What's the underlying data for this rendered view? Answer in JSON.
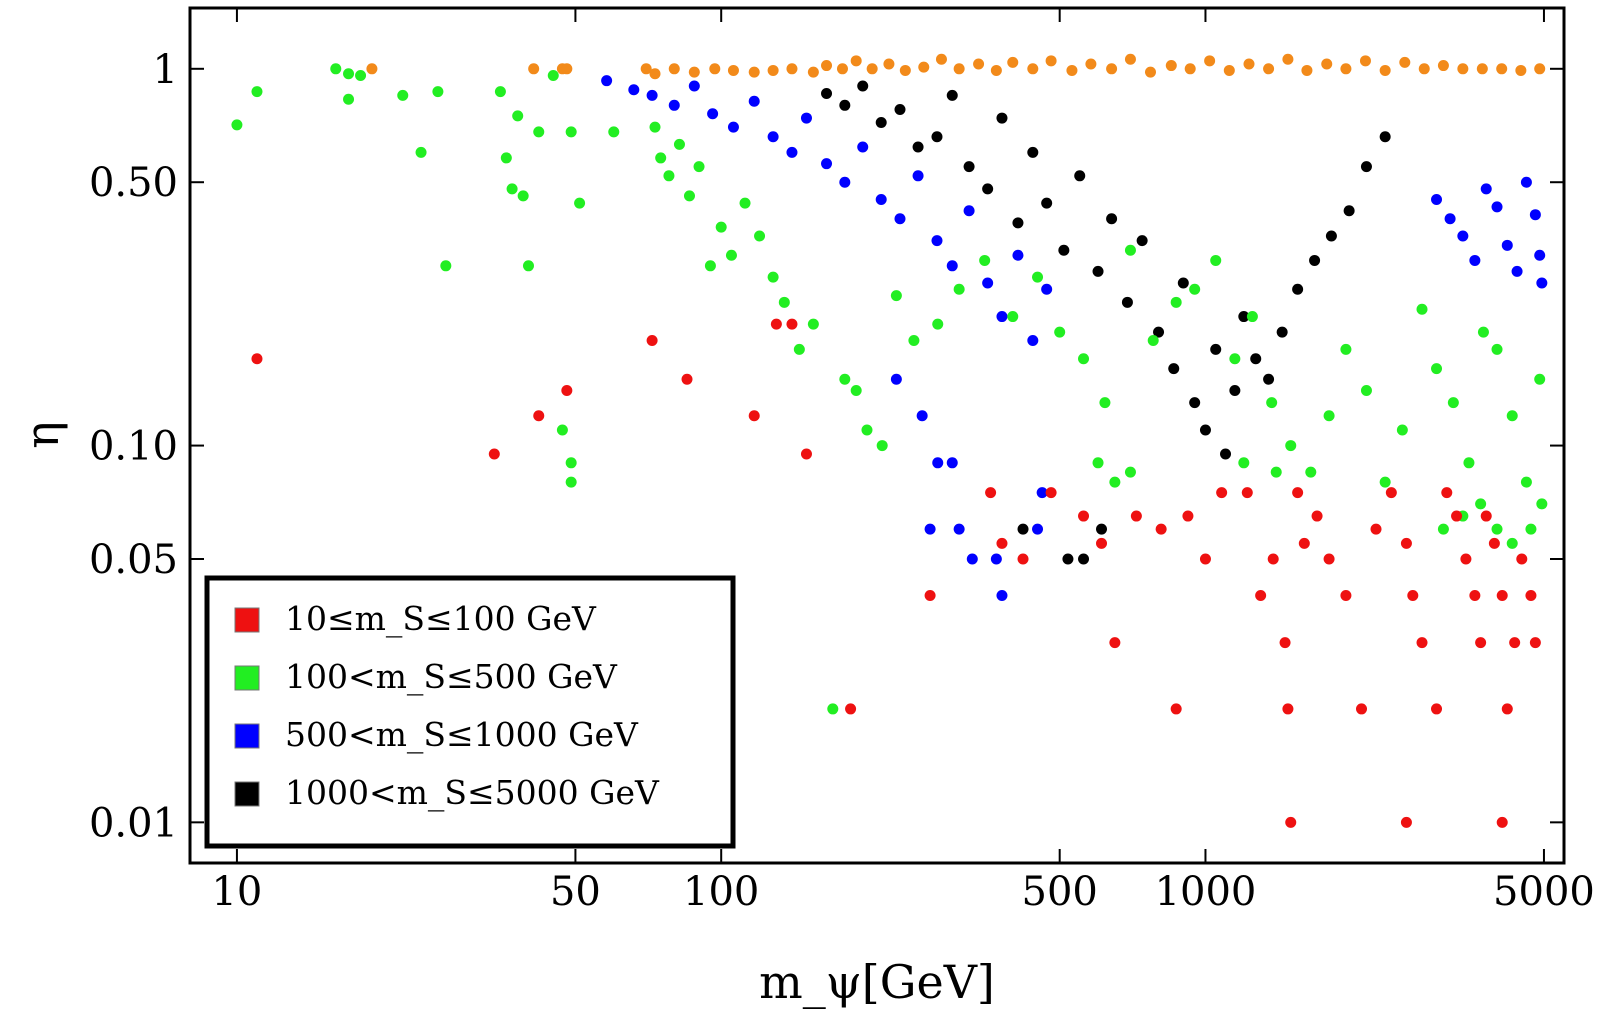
{
  "chart_data": {
    "type": "scatter",
    "x_scale": "log",
    "y_scale": "log",
    "xlim": [
      8,
      5500
    ],
    "ylim": [
      0.0078,
      1.45
    ],
    "xlabel": "m_ψ[GeV]",
    "ylabel": "η",
    "x_ticks": [
      {
        "value": 10,
        "label": "10"
      },
      {
        "value": 50,
        "label": "50"
      },
      {
        "value": 100,
        "label": "100"
      },
      {
        "value": 500,
        "label": "500"
      },
      {
        "value": 1000,
        "label": "1000"
      },
      {
        "value": 5000,
        "label": "5000"
      }
    ],
    "y_ticks": [
      {
        "value": 0.01,
        "label": "0.01"
      },
      {
        "value": 0.05,
        "label": "0.05"
      },
      {
        "value": 0.1,
        "label": "0.10"
      },
      {
        "value": 0.5,
        "label": "0.50"
      },
      {
        "value": 1,
        "label": "1"
      }
    ],
    "legend_position": "bottom-left",
    "legend": [
      {
        "series": "red",
        "text": "10≤m_S≤100  GeV"
      },
      {
        "series": "green",
        "text": "100<m_S≤500  GeV"
      },
      {
        "series": "blue",
        "text": "500<m_S≤1000  GeV"
      },
      {
        "series": "black",
        "text": "1000<m_S≤5000  GeV"
      }
    ],
    "series": [
      {
        "name": "orange",
        "color": "#f28a1a",
        "in_legend": false,
        "points": [
          [
            19,
            1.0
          ],
          [
            41,
            1.0
          ],
          [
            47,
            1.0
          ],
          [
            48,
            1.0
          ],
          [
            70,
            1.0
          ],
          [
            73,
            0.97
          ],
          [
            80,
            1.0
          ],
          [
            88,
            0.98
          ],
          [
            97,
            1.0
          ],
          [
            106,
            0.99
          ],
          [
            117,
            0.98
          ],
          [
            128,
            0.99
          ],
          [
            140,
            1.0
          ],
          [
            155,
            0.98
          ],
          [
            165,
            1.02
          ],
          [
            178,
            1.0
          ],
          [
            190,
            1.05
          ],
          [
            205,
            1.0
          ],
          [
            222,
            1.03
          ],
          [
            240,
            0.99
          ],
          [
            262,
            1.01
          ],
          [
            285,
            1.06
          ],
          [
            310,
            1.0
          ],
          [
            340,
            1.03
          ],
          [
            370,
            0.99
          ],
          [
            400,
            1.04
          ],
          [
            440,
            1.0
          ],
          [
            480,
            1.05
          ],
          [
            530,
            0.99
          ],
          [
            580,
            1.03
          ],
          [
            640,
            1.0
          ],
          [
            700,
            1.06
          ],
          [
            770,
            0.98
          ],
          [
            850,
            1.02
          ],
          [
            930,
            1.0
          ],
          [
            1020,
            1.05
          ],
          [
            1120,
            0.99
          ],
          [
            1230,
            1.03
          ],
          [
            1350,
            1.0
          ],
          [
            1480,
            1.06
          ],
          [
            1620,
            0.99
          ],
          [
            1780,
            1.03
          ],
          [
            1950,
            1.0
          ],
          [
            2140,
            1.05
          ],
          [
            2350,
            0.99
          ],
          [
            2580,
            1.04
          ],
          [
            2830,
            1.0
          ],
          [
            3100,
            1.02
          ],
          [
            3400,
            1.0
          ],
          [
            3730,
            1.0
          ],
          [
            4090,
            1.0
          ],
          [
            4480,
            0.99
          ],
          [
            4900,
            1.0
          ]
        ]
      },
      {
        "name": "black",
        "color": "#000000",
        "in_legend": true,
        "points": [
          [
            165,
            0.86
          ],
          [
            180,
            0.8
          ],
          [
            196,
            0.9
          ],
          [
            214,
            0.72
          ],
          [
            234,
            0.78
          ],
          [
            255,
            0.62
          ],
          [
            279,
            0.66
          ],
          [
            300,
            0.85
          ],
          [
            325,
            0.55
          ],
          [
            355,
            0.48
          ],
          [
            380,
            0.74
          ],
          [
            410,
            0.39
          ],
          [
            440,
            0.6
          ],
          [
            470,
            0.44
          ],
          [
            510,
            0.33
          ],
          [
            550,
            0.52
          ],
          [
            600,
            0.29
          ],
          [
            640,
            0.4
          ],
          [
            690,
            0.24
          ],
          [
            740,
            0.35
          ],
          [
            800,
            0.2
          ],
          [
            860,
            0.16
          ],
          [
            900,
            0.27
          ],
          [
            950,
            0.13
          ],
          [
            1000,
            0.11
          ],
          [
            1050,
            0.18
          ],
          [
            1100,
            0.095
          ],
          [
            1150,
            0.14
          ],
          [
            1200,
            0.22
          ],
          [
            1270,
            0.17
          ],
          [
            1350,
            0.15
          ],
          [
            1440,
            0.2
          ],
          [
            1550,
            0.26
          ],
          [
            1680,
            0.31
          ],
          [
            1820,
            0.36
          ],
          [
            1980,
            0.42
          ],
          [
            2150,
            0.55
          ],
          [
            2350,
            0.66
          ],
          [
            520,
            0.05
          ],
          [
            560,
            0.05
          ],
          [
            610,
            0.06
          ],
          [
            420,
            0.06
          ]
        ]
      },
      {
        "name": "blue",
        "color": "#0000ff",
        "in_legend": true,
        "points": [
          [
            58,
            0.93
          ],
          [
            66,
            0.88
          ],
          [
            72,
            0.85
          ],
          [
            80,
            0.8
          ],
          [
            88,
            0.9
          ],
          [
            96,
            0.76
          ],
          [
            106,
            0.7
          ],
          [
            117,
            0.82
          ],
          [
            128,
            0.66
          ],
          [
            140,
            0.6
          ],
          [
            150,
            0.74
          ],
          [
            165,
            0.56
          ],
          [
            180,
            0.5
          ],
          [
            196,
            0.62
          ],
          [
            214,
            0.45
          ],
          [
            234,
            0.4
          ],
          [
            255,
            0.52
          ],
          [
            279,
            0.35
          ],
          [
            300,
            0.3
          ],
          [
            325,
            0.42
          ],
          [
            355,
            0.27
          ],
          [
            380,
            0.22
          ],
          [
            410,
            0.32
          ],
          [
            440,
            0.19
          ],
          [
            470,
            0.26
          ],
          [
            230,
            0.15
          ],
          [
            260,
            0.12
          ],
          [
            280,
            0.09
          ],
          [
            300,
            0.09
          ],
          [
            270,
            0.06
          ],
          [
            310,
            0.06
          ],
          [
            330,
            0.05
          ],
          [
            370,
            0.05
          ],
          [
            380,
            0.04
          ],
          [
            460,
            0.075
          ],
          [
            450,
            0.06
          ],
          [
            3000,
            0.45
          ],
          [
            3200,
            0.4
          ],
          [
            3400,
            0.36
          ],
          [
            3600,
            0.31
          ],
          [
            3800,
            0.48
          ],
          [
            4000,
            0.43
          ],
          [
            4200,
            0.34
          ],
          [
            4400,
            0.29
          ],
          [
            4600,
            0.5
          ],
          [
            4800,
            0.41
          ],
          [
            4900,
            0.32
          ],
          [
            4950,
            0.27
          ]
        ]
      },
      {
        "name": "green",
        "color": "#22ee22",
        "in_legend": true,
        "points": [
          [
            10,
            0.71
          ],
          [
            11,
            0.87
          ],
          [
            16,
            1.0
          ],
          [
            17,
            0.97
          ],
          [
            18,
            0.96
          ],
          [
            17,
            0.83
          ],
          [
            22,
            0.85
          ],
          [
            24,
            0.6
          ],
          [
            26,
            0.87
          ],
          [
            27,
            0.3
          ],
          [
            35,
            0.87
          ],
          [
            36,
            0.58
          ],
          [
            37,
            0.48
          ],
          [
            38,
            0.75
          ],
          [
            39,
            0.46
          ],
          [
            40,
            0.3
          ],
          [
            42,
            0.68
          ],
          [
            45,
            0.96
          ],
          [
            49,
            0.68
          ],
          [
            51,
            0.44
          ],
          [
            60,
            0.68
          ],
          [
            47,
            0.11
          ],
          [
            49,
            0.09
          ],
          [
            49,
            0.08
          ],
          [
            73,
            0.7
          ],
          [
            75,
            0.58
          ],
          [
            78,
            0.52
          ],
          [
            82,
            0.63
          ],
          [
            86,
            0.46
          ],
          [
            90,
            0.55
          ],
          [
            95,
            0.3
          ],
          [
            100,
            0.38
          ],
          [
            105,
            0.32
          ],
          [
            112,
            0.44
          ],
          [
            120,
            0.36
          ],
          [
            128,
            0.28
          ],
          [
            135,
            0.24
          ],
          [
            145,
            0.18
          ],
          [
            155,
            0.21
          ],
          [
            170,
            0.02
          ],
          [
            180,
            0.15
          ],
          [
            190,
            0.14
          ],
          [
            200,
            0.11
          ],
          [
            215,
            0.1
          ],
          [
            230,
            0.25
          ],
          [
            250,
            0.19
          ],
          [
            280,
            0.21
          ],
          [
            310,
            0.26
          ],
          [
            350,
            0.31
          ],
          [
            400,
            0.22
          ],
          [
            450,
            0.28
          ],
          [
            500,
            0.2
          ],
          [
            560,
            0.17
          ],
          [
            620,
            0.13
          ],
          [
            700,
            0.33
          ],
          [
            780,
            0.19
          ],
          [
            870,
            0.24
          ],
          [
            950,
            0.26
          ],
          [
            1050,
            0.31
          ],
          [
            1150,
            0.17
          ],
          [
            1250,
            0.22
          ],
          [
            1370,
            0.13
          ],
          [
            1500,
            0.1
          ],
          [
            1650,
            0.085
          ],
          [
            1800,
            0.12
          ],
          [
            1950,
            0.18
          ],
          [
            2150,
            0.14
          ],
          [
            2350,
            0.08
          ],
          [
            2550,
            0.11
          ],
          [
            2800,
            0.23
          ],
          [
            3000,
            0.16
          ],
          [
            3250,
            0.13
          ],
          [
            3500,
            0.09
          ],
          [
            3750,
            0.2
          ],
          [
            4000,
            0.18
          ],
          [
            4300,
            0.12
          ],
          [
            4600,
            0.08
          ],
          [
            4900,
            0.15
          ],
          [
            4950,
            0.07
          ],
          [
            3100,
            0.06
          ],
          [
            3400,
            0.065
          ],
          [
            3700,
            0.07
          ],
          [
            4000,
            0.06
          ],
          [
            4300,
            0.055
          ],
          [
            4700,
            0.06
          ],
          [
            1200,
            0.09
          ],
          [
            1400,
            0.085
          ],
          [
            600,
            0.09
          ],
          [
            650,
            0.08
          ],
          [
            700,
            0.085
          ]
        ]
      },
      {
        "name": "red",
        "color": "#ee1111",
        "in_legend": true,
        "points": [
          [
            11,
            0.17
          ],
          [
            34,
            0.095
          ],
          [
            42,
            0.12
          ],
          [
            48,
            0.14
          ],
          [
            72,
            0.19
          ],
          [
            85,
            0.15
          ],
          [
            117,
            0.12
          ],
          [
            130,
            0.21
          ],
          [
            140,
            0.21
          ],
          [
            150,
            0.095
          ],
          [
            185,
            0.02
          ],
          [
            270,
            0.04
          ],
          [
            360,
            0.075
          ],
          [
            380,
            0.055
          ],
          [
            420,
            0.05
          ],
          [
            480,
            0.075
          ],
          [
            560,
            0.065
          ],
          [
            610,
            0.055
          ],
          [
            650,
            0.03
          ],
          [
            720,
            0.065
          ],
          [
            810,
            0.06
          ],
          [
            870,
            0.02
          ],
          [
            920,
            0.065
          ],
          [
            1000,
            0.05
          ],
          [
            1080,
            0.075
          ],
          [
            1220,
            0.075
          ],
          [
            1300,
            0.04
          ],
          [
            1380,
            0.05
          ],
          [
            1460,
            0.03
          ],
          [
            1480,
            0.02
          ],
          [
            1550,
            0.075
          ],
          [
            1600,
            0.055
          ],
          [
            1700,
            0.065
          ],
          [
            1800,
            0.05
          ],
          [
            1950,
            0.04
          ],
          [
            2100,
            0.02
          ],
          [
            2250,
            0.06
          ],
          [
            2420,
            0.075
          ],
          [
            2600,
            0.055
          ],
          [
            2680,
            0.04
          ],
          [
            2800,
            0.03
          ],
          [
            3000,
            0.02
          ],
          [
            3150,
            0.075
          ],
          [
            3300,
            0.065
          ],
          [
            3450,
            0.05
          ],
          [
            3600,
            0.04
          ],
          [
            3700,
            0.03
          ],
          [
            3800,
            0.065
          ],
          [
            3950,
            0.055
          ],
          [
            4100,
            0.04
          ],
          [
            4200,
            0.02
          ],
          [
            4350,
            0.03
          ],
          [
            4500,
            0.05
          ],
          [
            4700,
            0.04
          ],
          [
            4800,
            0.03
          ],
          [
            1500,
            0.01
          ],
          [
            2600,
            0.01
          ],
          [
            4100,
            0.01
          ]
        ]
      }
    ]
  }
}
